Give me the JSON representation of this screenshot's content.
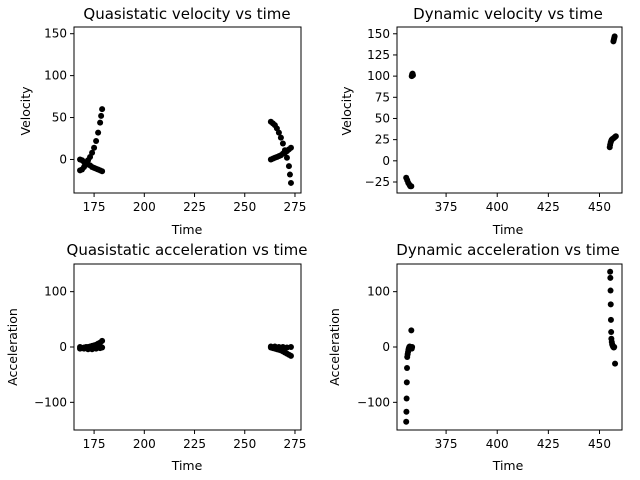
{
  "chart_data": [
    {
      "type": "scatter",
      "title": "Quasistatic velocity vs time",
      "xlabel": "Time",
      "ylabel": "Velocity",
      "xlim": [
        165,
        278
      ],
      "ylim": [
        -40,
        158
      ],
      "xticks": [
        175,
        200,
        225,
        250,
        275
      ],
      "yticks": [
        0,
        50,
        100,
        150
      ],
      "grid": false,
      "marker_color": "#000000",
      "series": [
        {
          "points": [
            [
              168,
              -13
            ],
            [
              169,
              -12
            ],
            [
              170,
              -9
            ],
            [
              171,
              -5
            ],
            [
              172,
              -1
            ],
            [
              173,
              3
            ],
            [
              174,
              8
            ],
            [
              175,
              14
            ],
            [
              176,
              22
            ],
            [
              177,
              32
            ],
            [
              178,
              44
            ],
            [
              178.5,
              52
            ],
            [
              179,
              60
            ],
            [
              168,
              0
            ],
            [
              169,
              -1
            ],
            [
              170,
              -3
            ],
            [
              171,
              -5
            ],
            [
              172,
              -6
            ],
            [
              173,
              -7
            ],
            [
              174,
              -9
            ],
            [
              175,
              -10
            ],
            [
              176,
              -11
            ],
            [
              177,
              -12
            ],
            [
              178,
              -13
            ],
            [
              179,
              -14
            ],
            [
              263,
              45
            ],
            [
              264,
              43
            ],
            [
              265,
              41
            ],
            [
              266,
              37
            ],
            [
              267,
              32
            ],
            [
              268,
              26
            ],
            [
              269,
              19
            ],
            [
              270,
              11
            ],
            [
              271,
              2
            ],
            [
              272,
              -8
            ],
            [
              272.5,
              -18
            ],
            [
              273,
              -28
            ],
            [
              263,
              0
            ],
            [
              264,
              1
            ],
            [
              265,
              2
            ],
            [
              266,
              3
            ],
            [
              267,
              4
            ],
            [
              268,
              5
            ],
            [
              269,
              7
            ],
            [
              270,
              8
            ],
            [
              271,
              10
            ],
            [
              272,
              12
            ],
            [
              273,
              14
            ]
          ]
        }
      ]
    },
    {
      "type": "scatter",
      "title": "Dynamic velocity vs time",
      "xlabel": "Time",
      "ylabel": "Velocity",
      "xlim": [
        351,
        461
      ],
      "ylim": [
        -38,
        158
      ],
      "xticks": [
        375,
        400,
        425,
        450
      ],
      "yticks": [
        -25,
        0,
        25,
        50,
        75,
        100,
        125,
        150
      ],
      "grid": false,
      "marker_color": "#000000",
      "series": [
        {
          "points": [
            [
              355.5,
              -20
            ],
            [
              356,
              -23
            ],
            [
              356.5,
              -26
            ],
            [
              357,
              -28
            ],
            [
              357.5,
              -30
            ],
            [
              358,
              -30
            ],
            [
              358.2,
              100
            ],
            [
              358.4,
              102
            ],
            [
              358.6,
              103
            ],
            [
              358.8,
              101
            ],
            [
              455,
              16
            ],
            [
              455.2,
              19
            ],
            [
              455.5,
              22
            ],
            [
              455.8,
              24
            ],
            [
              456,
              25
            ],
            [
              456.5,
              26
            ],
            [
              457,
              27
            ],
            [
              457.5,
              28
            ],
            [
              458,
              29
            ],
            [
              456.8,
              141
            ],
            [
              457,
              143
            ],
            [
              457.2,
              145
            ],
            [
              457.4,
              147
            ]
          ]
        }
      ]
    },
    {
      "type": "scatter",
      "title": "Quasistatic acceleration vs time",
      "xlabel": "Time",
      "ylabel": "Acceleration",
      "xlim": [
        165,
        278
      ],
      "ylim": [
        -150,
        150
      ],
      "xticks": [
        175,
        200,
        225,
        250,
        275
      ],
      "yticks": [
        -100,
        0,
        100
      ],
      "grid": false,
      "marker_color": "#000000",
      "series": [
        {
          "points": [
            [
              168,
              -3
            ],
            [
              169,
              -2
            ],
            [
              170,
              -1
            ],
            [
              171,
              0
            ],
            [
              172,
              0
            ],
            [
              173,
              1
            ],
            [
              174,
              2
            ],
            [
              175,
              3
            ],
            [
              176,
              4
            ],
            [
              177,
              6
            ],
            [
              178,
              8
            ],
            [
              179,
              11
            ],
            [
              168,
              0
            ],
            [
              170,
              -3
            ],
            [
              172,
              -4
            ],
            [
              174,
              -4
            ],
            [
              176,
              -3
            ],
            [
              178,
              -2
            ],
            [
              179,
              -1
            ],
            [
              263,
              -1
            ],
            [
              264,
              -2
            ],
            [
              265,
              -3
            ],
            [
              266,
              -4
            ],
            [
              267,
              -5
            ],
            [
              268,
              -6
            ],
            [
              269,
              -8
            ],
            [
              270,
              -10
            ],
            [
              271,
              -12
            ],
            [
              272,
              -14
            ],
            [
              273,
              -16
            ],
            [
              263,
              1
            ],
            [
              265,
              1
            ],
            [
              267,
              0
            ],
            [
              269,
              0
            ],
            [
              271,
              -1
            ],
            [
              273,
              0
            ]
          ]
        }
      ]
    },
    {
      "type": "scatter",
      "title": "Dynamic acceleration vs time",
      "xlabel": "Time",
      "ylabel": "Acceleration",
      "xlim": [
        351,
        461
      ],
      "ylim": [
        -150,
        150
      ],
      "xticks": [
        375,
        400,
        425,
        450
      ],
      "yticks": [
        -100,
        0,
        100
      ],
      "grid": false,
      "marker_color": "#000000",
      "series": [
        {
          "points": [
            [
              355.5,
              -135
            ],
            [
              355.6,
              -117
            ],
            [
              355.7,
              -93
            ],
            [
              355.8,
              -64
            ],
            [
              355.9,
              -38
            ],
            [
              356,
              -18
            ],
            [
              356.2,
              -13
            ],
            [
              356.4,
              -9
            ],
            [
              356.6,
              -5
            ],
            [
              356.8,
              -2
            ],
            [
              357,
              0
            ],
            [
              357.2,
              1
            ],
            [
              358,
              30
            ],
            [
              358.2,
              -3
            ],
            [
              358.4,
              0
            ],
            [
              455.2,
              136
            ],
            [
              455.3,
              125
            ],
            [
              455.4,
              102
            ],
            [
              455.5,
              77
            ],
            [
              455.6,
              49
            ],
            [
              455.7,
              27
            ],
            [
              455.8,
              15
            ],
            [
              456,
              9
            ],
            [
              456.2,
              5
            ],
            [
              456.4,
              3
            ],
            [
              456.6,
              1
            ],
            [
              456.8,
              0
            ],
            [
              457,
              -1
            ],
            [
              457.2,
              0
            ],
            [
              457.6,
              -30
            ]
          ]
        }
      ]
    }
  ]
}
